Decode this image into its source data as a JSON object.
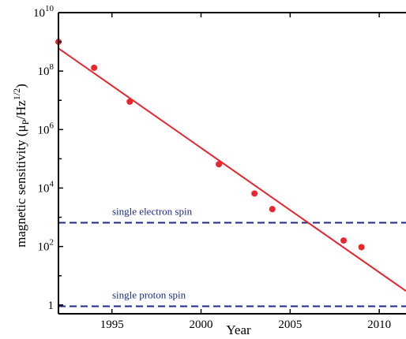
{
  "chart_data": {
    "type": "scatter",
    "xlabel": "Year",
    "ylabel_main": "magnetic sensitivity (μ",
    "ylabel_sub": "P",
    "ylabel_mid": "/Hz",
    "ylabel_sup": "1/2",
    "ylabel_end": ")",
    "xlim": [
      1992,
      2011.5
    ],
    "ylim": [
      0.5,
      10000000000
    ],
    "yscale": "log",
    "grid": false,
    "xticks": [
      {
        "value": 1995,
        "label": "1995"
      },
      {
        "value": 2000,
        "label": "2000"
      },
      {
        "value": 2005,
        "label": "2005"
      },
      {
        "value": 2010,
        "label": "2010"
      }
    ],
    "yticks": [
      {
        "value": 1,
        "base": "1",
        "exp": ""
      },
      {
        "value": 100,
        "base": "10",
        "exp": "2"
      },
      {
        "value": 10000,
        "base": "10",
        "exp": "4"
      },
      {
        "value": 1000000,
        "base": "10",
        "exp": "6"
      },
      {
        "value": 100000000,
        "base": "10",
        "exp": "8"
      },
      {
        "value": 10000000000,
        "base": "10",
        "exp": "10"
      }
    ],
    "points": [
      {
        "x": 1992,
        "y": 1000000000
      },
      {
        "x": 1994,
        "y": 130000000
      },
      {
        "x": 1996,
        "y": 9000000
      },
      {
        "x": 2001,
        "y": 65000
      },
      {
        "x": 2003,
        "y": 6500
      },
      {
        "x": 2004,
        "y": 1900
      },
      {
        "x": 2008,
        "y": 160
      },
      {
        "x": 2009,
        "y": 95
      }
    ],
    "trend_line": {
      "x1": 1992,
      "y1": 600000000,
      "x2": 2011.5,
      "y2": 3
    },
    "reference_lines": [
      {
        "y": 650,
        "label": "single electron spin"
      },
      {
        "y": 0.9,
        "label": "single proton spin"
      }
    ],
    "colors": {
      "points": "#e8262b",
      "trend": "#e8262b",
      "reference": "#1a2a8c",
      "axis": "#000000"
    }
  }
}
